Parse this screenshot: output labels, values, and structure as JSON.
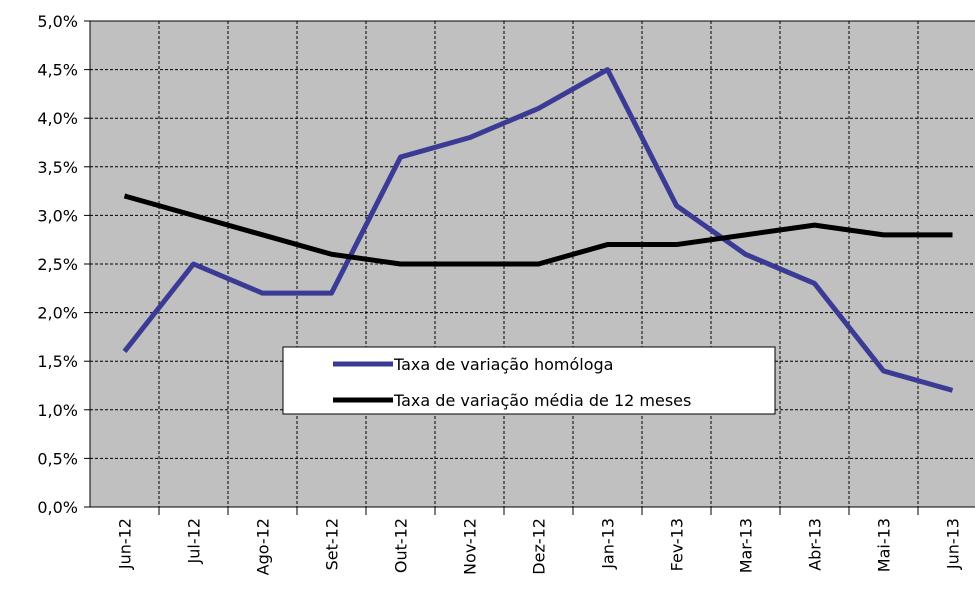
{
  "chart_data": {
    "type": "line",
    "categories": [
      "Jun-12",
      "Jul-12",
      "Ago-12",
      "Set-12",
      "Out-12",
      "Nov-12",
      "Dez-12",
      "Jan-13",
      "Fev-13",
      "Mar-13",
      "Abr-13",
      "Mai-13",
      "Jun-13"
    ],
    "series": [
      {
        "name": "Taxa de variação homóloga",
        "color": "#3b3b96",
        "values": [
          1.6,
          2.5,
          2.2,
          2.2,
          3.6,
          3.8,
          4.1,
          4.5,
          3.1,
          2.6,
          2.3,
          1.4,
          1.2
        ]
      },
      {
        "name": "Taxa de variação média de 12 meses",
        "color": "#000000",
        "values": [
          3.2,
          3.0,
          2.8,
          2.6,
          2.5,
          2.5,
          2.5,
          2.7,
          2.7,
          2.8,
          2.9,
          2.8,
          2.8
        ]
      }
    ],
    "ylim": [
      0,
      5
    ],
    "yticks": [
      {
        "value": 0,
        "label": "0,0%"
      },
      {
        "value": 0.5,
        "label": "0,5%"
      },
      {
        "value": 1,
        "label": "1,0%"
      },
      {
        "value": 1.5,
        "label": "1,5%"
      },
      {
        "value": 2,
        "label": "2,0%"
      },
      {
        "value": 2.5,
        "label": "2,5%"
      },
      {
        "value": 3,
        "label": "3,0%"
      },
      {
        "value": 3.5,
        "label": "3,5%"
      },
      {
        "value": 4,
        "label": "4,0%"
      },
      {
        "value": 4.5,
        "label": "4,5%"
      },
      {
        "value": 5,
        "label": "5,0%"
      }
    ],
    "grid": true
  }
}
